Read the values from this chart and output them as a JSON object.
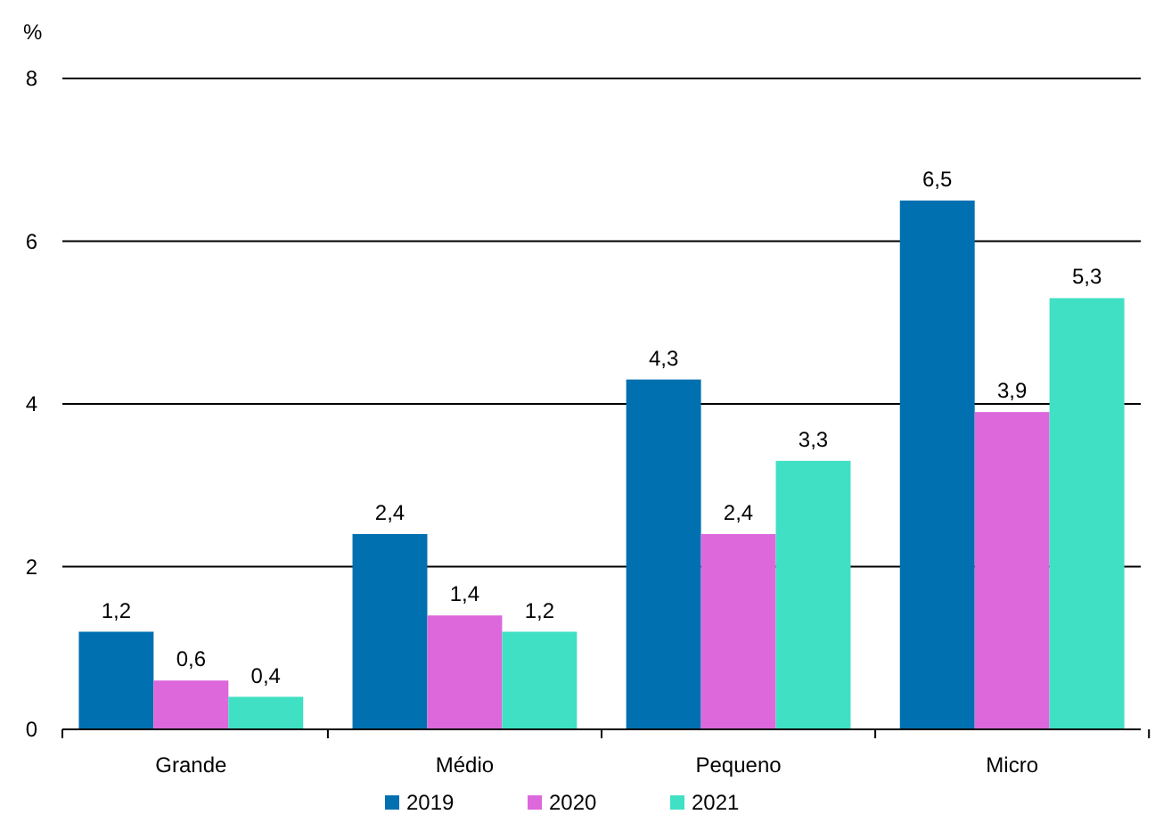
{
  "chart_data": {
    "type": "bar",
    "ylabel": "%",
    "categories": [
      "Grande",
      "Médio",
      "Pequeno",
      "Micro"
    ],
    "series": [
      {
        "name": "2019",
        "color": "#0070b0",
        "values": [
          1.2,
          2.4,
          4.3,
          6.5
        ],
        "value_labels": [
          "1,2",
          "2,4",
          "4,3",
          "6,5"
        ]
      },
      {
        "name": "2020",
        "color": "#dc68dc",
        "values": [
          0.6,
          1.4,
          2.4,
          3.9
        ],
        "value_labels": [
          "0,6",
          "1,4",
          "2,4",
          "3,9"
        ]
      },
      {
        "name": "2021",
        "color": "#40e0c4",
        "values": [
          0.4,
          1.2,
          3.3,
          5.3
        ],
        "value_labels": [
          "0,4",
          "1,2",
          "3,3",
          "5,3"
        ]
      }
    ],
    "ylim": [
      0,
      8
    ],
    "yticks": [
      0,
      2,
      4,
      6,
      8
    ],
    "grid": "y",
    "legend": "bottom"
  }
}
